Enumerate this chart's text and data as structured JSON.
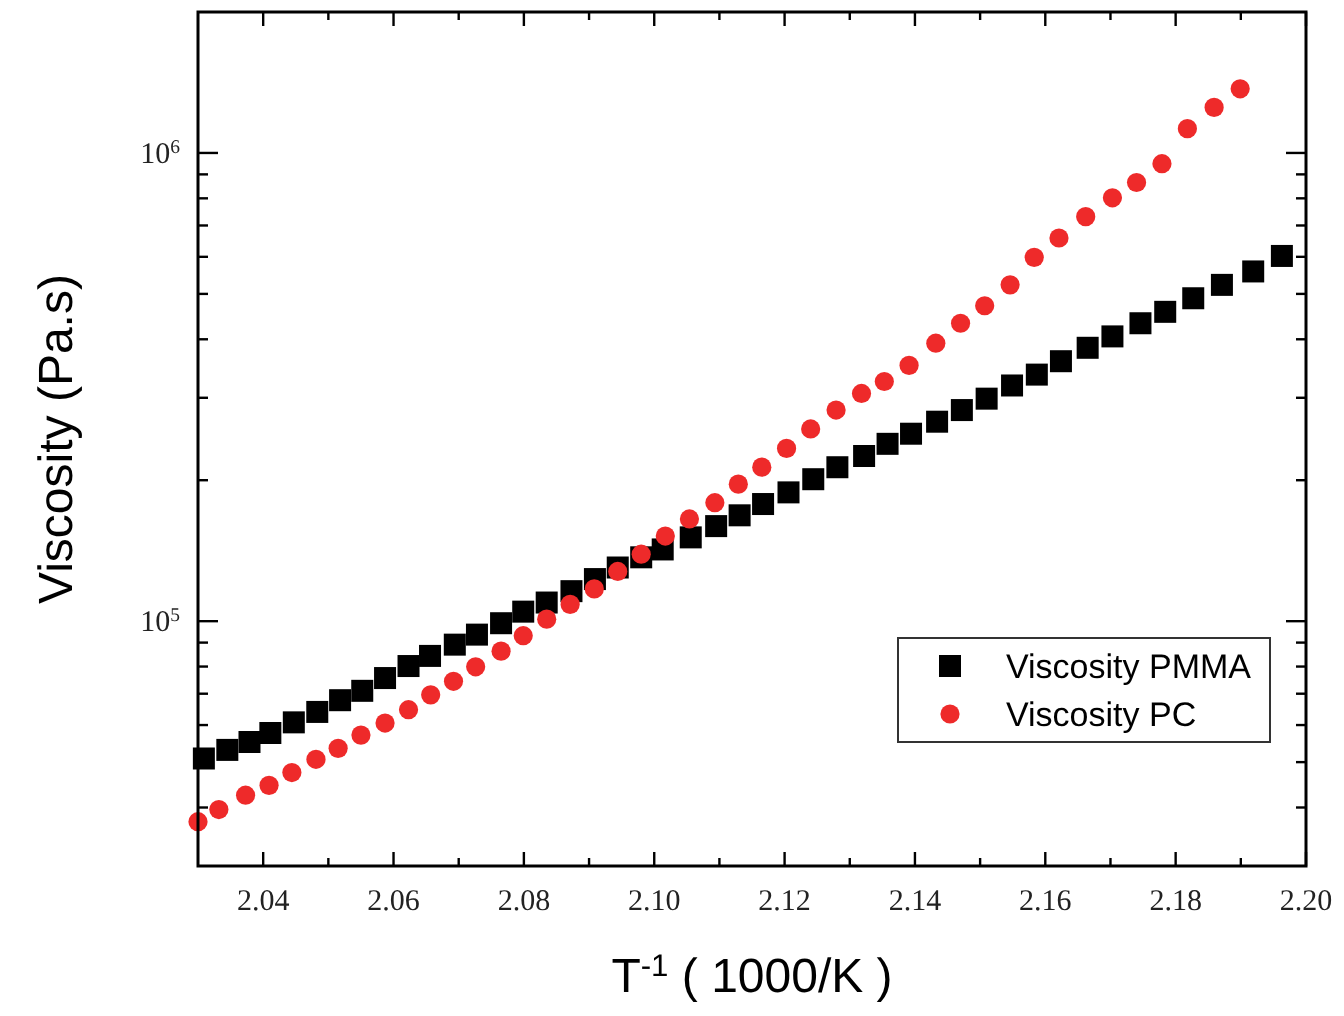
{
  "chart_data": {
    "type": "scatter",
    "xlabel": "T$^{-1}$ ( 1000/K )",
    "ylabel": "Viscosity (Pa.s)",
    "log": "y",
    "grid": false,
    "legend": "bottom right",
    "xlim": [
      2.03,
      2.2
    ],
    "xticks": [
      2.04,
      {
        "value": 2.05,
        "label": null
      },
      2.06,
      {
        "value": 2.07,
        "label": null
      },
      2.08,
      {
        "value": 2.09,
        "label": null
      },
      "2.10",
      {
        "value": 2.11,
        "label": null
      },
      2.12,
      {
        "value": 2.13,
        "label": null
      },
      2.14,
      {
        "value": 2.15,
        "label": null
      },
      2.16,
      {
        "value": 2.17,
        "label": null
      },
      2.18,
      {
        "value": 2.19,
        "label": null
      },
      "2.20"
    ],
    "ylim": [
      30000,
      2000000
    ],
    "yticks": [
      {
        "value": 40000,
        "label": null
      },
      {
        "value": 50000,
        "label": null
      },
      {
        "value": 60000,
        "label": null
      },
      {
        "value": 70000,
        "label": null
      },
      {
        "value": 80000,
        "label": null
      },
      {
        "value": 90000,
        "label": null
      },
      {
        "value": 100000,
        "label": "10$^{5}$"
      },
      {
        "value": 200000,
        "label": null
      },
      {
        "value": 300000,
        "label": null
      },
      {
        "value": 400000,
        "label": null
      },
      {
        "value": 500000,
        "label": null
      },
      {
        "value": 600000,
        "label": null
      },
      {
        "value": 700000,
        "label": null
      },
      {
        "value": 800000,
        "label": null
      },
      {
        "value": 900000,
        "label": null
      },
      {
        "value": 1000000,
        "label": "10$^{6}$"
      }
    ],
    "series": [
      {
        "name": "Viscosity PMMA",
        "color": "#000000",
        "marker": "square",
        "x": [
          2.0309,
          2.0345,
          2.0379,
          2.0411,
          2.0447,
          2.0483,
          2.0518,
          2.0552,
          2.0587,
          2.0623,
          2.0656,
          2.0694,
          2.0728,
          2.0765,
          2.0799,
          2.0835,
          2.0873,
          2.0909,
          2.0944,
          2.098,
          2.1013,
          2.1056,
          2.1095,
          2.1131,
          2.1167,
          2.1206,
          2.1244,
          2.1281,
          2.1322,
          2.1358,
          2.1394,
          2.1434,
          2.1472,
          2.151,
          2.1549,
          2.1587,
          2.1624,
          2.1665,
          2.1703,
          2.1746,
          2.1784,
          2.1827,
          2.1871,
          2.1919,
          2.1963
        ],
        "values": [
          50900,
          53100,
          55200,
          57700,
          60800,
          64000,
          67800,
          71000,
          75600,
          80200,
          84300,
          89100,
          93600,
          99000,
          104800,
          109600,
          115900,
          123000,
          130200,
          136900,
          142300,
          151000,
          159600,
          168300,
          177900,
          188400,
          201000,
          213200,
          225300,
          239200,
          251400,
          266700,
          282400,
          298700,
          318700,
          336200,
          359100,
          383600,
          405700,
          432800,
          457800,
          489400,
          522700,
          558400,
          602600
        ]
      },
      {
        "name": "Viscosity PC",
        "color": "#ee2a2a",
        "marker": "circle",
        "x": [
          2.03,
          2.0332,
          2.0373,
          2.0409,
          2.0444,
          2.0481,
          2.0515,
          2.055,
          2.0587,
          2.0623,
          2.0657,
          2.0692,
          2.0726,
          2.0765,
          2.0799,
          2.0835,
          2.0871,
          2.0908,
          2.0944,
          2.098,
          2.1017,
          2.1054,
          2.1093,
          2.1129,
          2.1165,
          2.1203,
          2.124,
          2.1279,
          2.1318,
          2.1353,
          2.1391,
          2.1432,
          2.147,
          2.1507,
          2.1546,
          2.1583,
          2.1621,
          2.1662,
          2.1703,
          2.174,
          2.1779,
          2.1818,
          2.1859,
          2.1899
        ],
        "values": [
          37300,
          39600,
          42500,
          44600,
          47500,
          50700,
          53500,
          57100,
          60600,
          64700,
          69600,
          74400,
          79900,
          86300,
          93100,
          101000,
          108600,
          117200,
          127700,
          139000,
          152000,
          165300,
          179100,
          196200,
          213300,
          233900,
          257400,
          282400,
          306500,
          325000,
          351800,
          392400,
          432800,
          471700,
          522700,
          598400,
          658200,
          731100,
          802100,
          864700,
          948500,
          1127000,
          1251000,
          1371000
        ]
      }
    ]
  }
}
